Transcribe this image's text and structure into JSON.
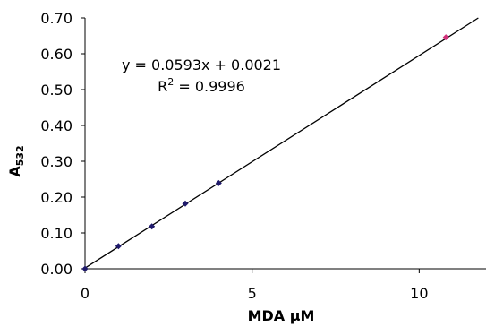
{
  "chart_data": {
    "type": "scatter",
    "xlabel": "MDA µM",
    "ylabel_main": "A",
    "ylabel_sub": "532",
    "xlim": [
      0,
      12
    ],
    "ylim": [
      0,
      0.7
    ],
    "xticks": [
      0,
      5,
      10
    ],
    "yticks": [
      "0.00",
      "0.10",
      "0.20",
      "0.30",
      "0.40",
      "0.50",
      "0.60",
      "0.70"
    ],
    "grid": false,
    "legend": "none",
    "series": [
      {
        "marker_color": "#1f1a6b",
        "x": [
          0,
          1,
          2,
          3,
          4
        ],
        "y": [
          0.0,
          0.063,
          0.118,
          0.182,
          0.239
        ]
      },
      {
        "marker_color": "#d0307a",
        "x": [
          10.8
        ],
        "y": [
          0.646
        ]
      }
    ],
    "trendline": {
      "slope": 0.0593,
      "intercept": 0.0021,
      "color": "#000000",
      "equation_text": "y = 0.0593x + 0.0021",
      "r2_prefix": "R",
      "r2_exp": "2",
      "r2_suffix": " = 0.9996"
    }
  }
}
